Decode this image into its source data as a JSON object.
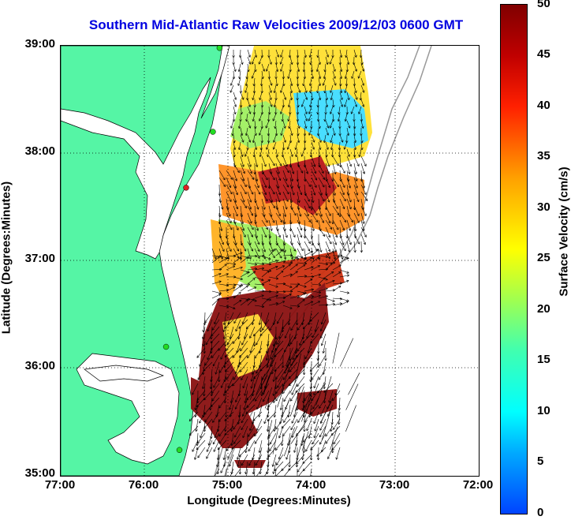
{
  "title": "Southern Mid-Atlantic Raw Velocities 2009/12/03 0600 GMT",
  "x_axis": {
    "label": "Longitude (Degrees:Minutes)",
    "ticks": [
      "77:00",
      "76:00",
      "75:00",
      "74:00",
      "73:00",
      "72:00"
    ]
  },
  "y_axis": {
    "label": "Latitude (Degrees:Minutes)",
    "ticks": [
      "39:00",
      "38:00",
      "37:00",
      "36:00",
      "35:00"
    ]
  },
  "colorbar": {
    "label": "Surface Velocity (cm/s)",
    "ticks": [
      "50",
      "45",
      "40",
      "35",
      "30",
      "25",
      "20",
      "15",
      "10",
      "5",
      "0"
    ],
    "range": [
      0,
      50
    ]
  },
  "map_extent": {
    "lon": [
      -77,
      -72
    ],
    "lat": [
      35,
      39
    ]
  },
  "grid": true,
  "colors": {
    "land": "#55f5a5",
    "title": "#0000e0",
    "station": "#22dd22",
    "station_alt": "#dd2222"
  },
  "stations": [
    {
      "lon": -75.1,
      "lat": 38.98,
      "color": "#22dd22"
    },
    {
      "lon": -75.18,
      "lat": 38.2,
      "color": "#22dd22"
    },
    {
      "lon": -75.5,
      "lat": 37.68,
      "color": "#dd2222"
    },
    {
      "lon": -75.74,
      "lat": 36.2,
      "color": "#22dd22"
    },
    {
      "lon": -75.58,
      "lat": 35.24,
      "color": "#22dd22"
    }
  ]
}
